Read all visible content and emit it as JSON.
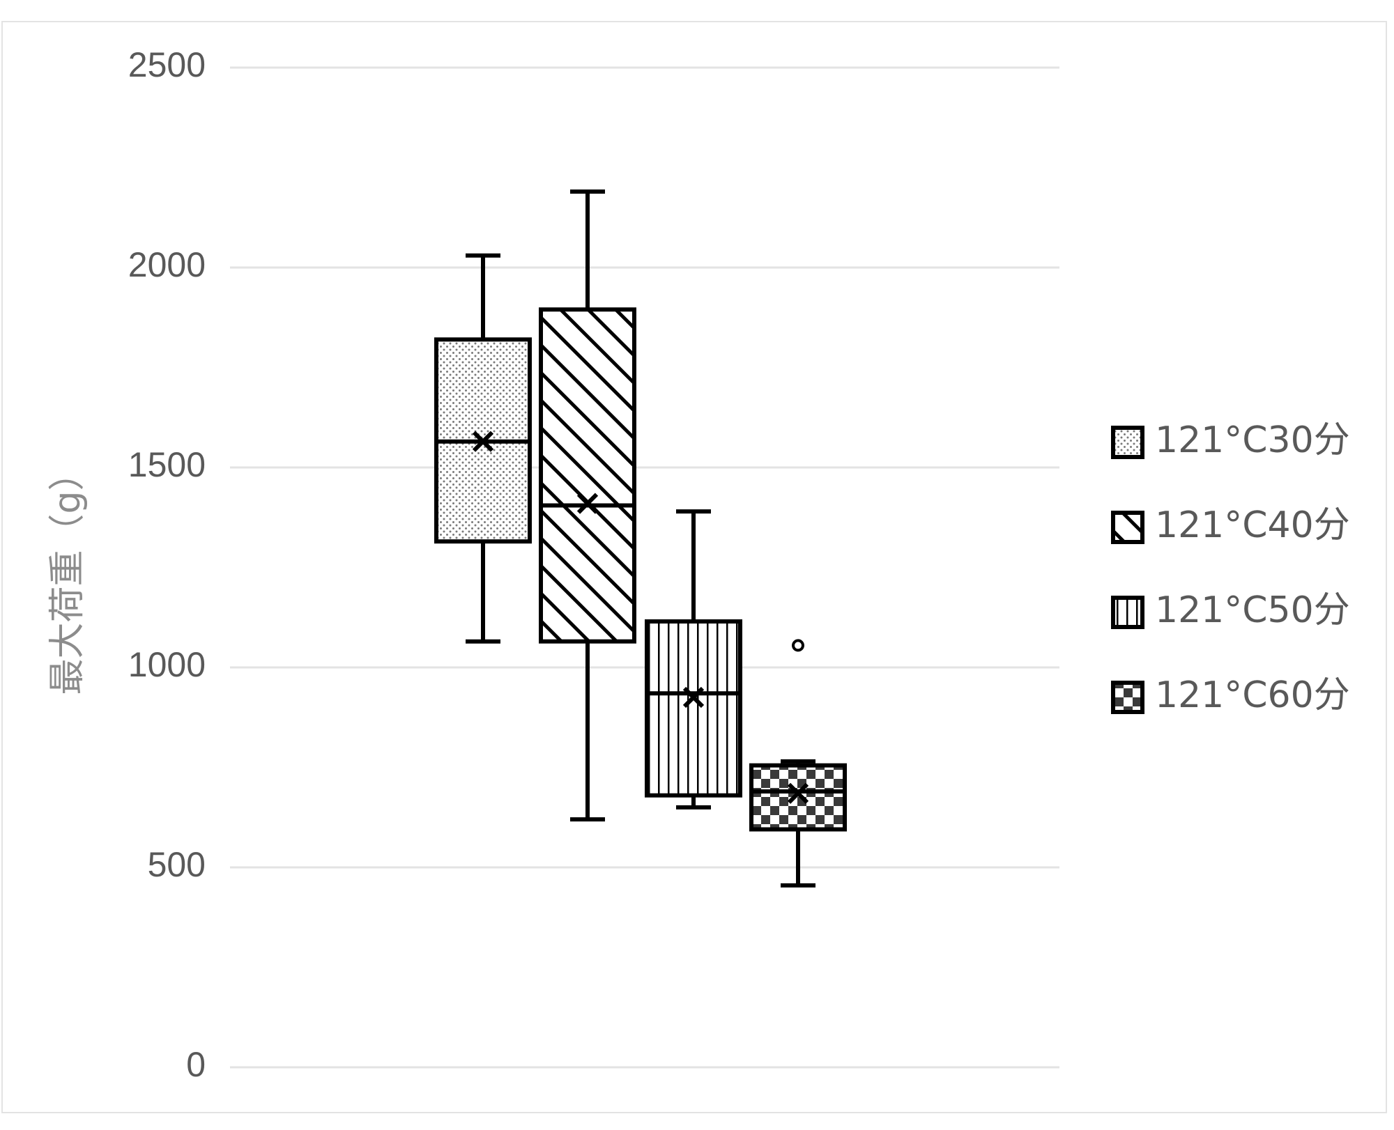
{
  "chart_data": {
    "type": "box",
    "title": "",
    "xlabel": "",
    "ylabel": "最大荷重（g）",
    "ylim": [
      0,
      2500
    ],
    "yticks": [
      0,
      500,
      1000,
      1500,
      2000,
      2500
    ],
    "grid": "horizontal",
    "legend_position": "right",
    "series": [
      {
        "name": "121°C30分",
        "pattern": "dots",
        "min": 1065,
        "q1": 1315,
        "median": 1565,
        "q3": 1820,
        "max": 2030,
        "mean": 1565,
        "outliers": []
      },
      {
        "name": "121°C40分",
        "pattern": "diagonal",
        "min": 620,
        "q1": 1065,
        "median": 1405,
        "q3": 1895,
        "max": 2190,
        "mean": 1410,
        "outliers": []
      },
      {
        "name": "121°C50分",
        "pattern": "vertical",
        "min": 650,
        "q1": 680,
        "median": 935,
        "q3": 1115,
        "max": 1390,
        "mean": 925,
        "outliers": []
      },
      {
        "name": "121°C60分",
        "pattern": "checker",
        "min": 455,
        "q1": 595,
        "median": 690,
        "q3": 755,
        "max": 765,
        "mean": 685,
        "outliers": [
          1055
        ]
      }
    ],
    "colors": {
      "stroke": "#000000",
      "grid": "#e3e3e3",
      "text": "#595959",
      "axis_title": "#8c8c8c"
    }
  }
}
